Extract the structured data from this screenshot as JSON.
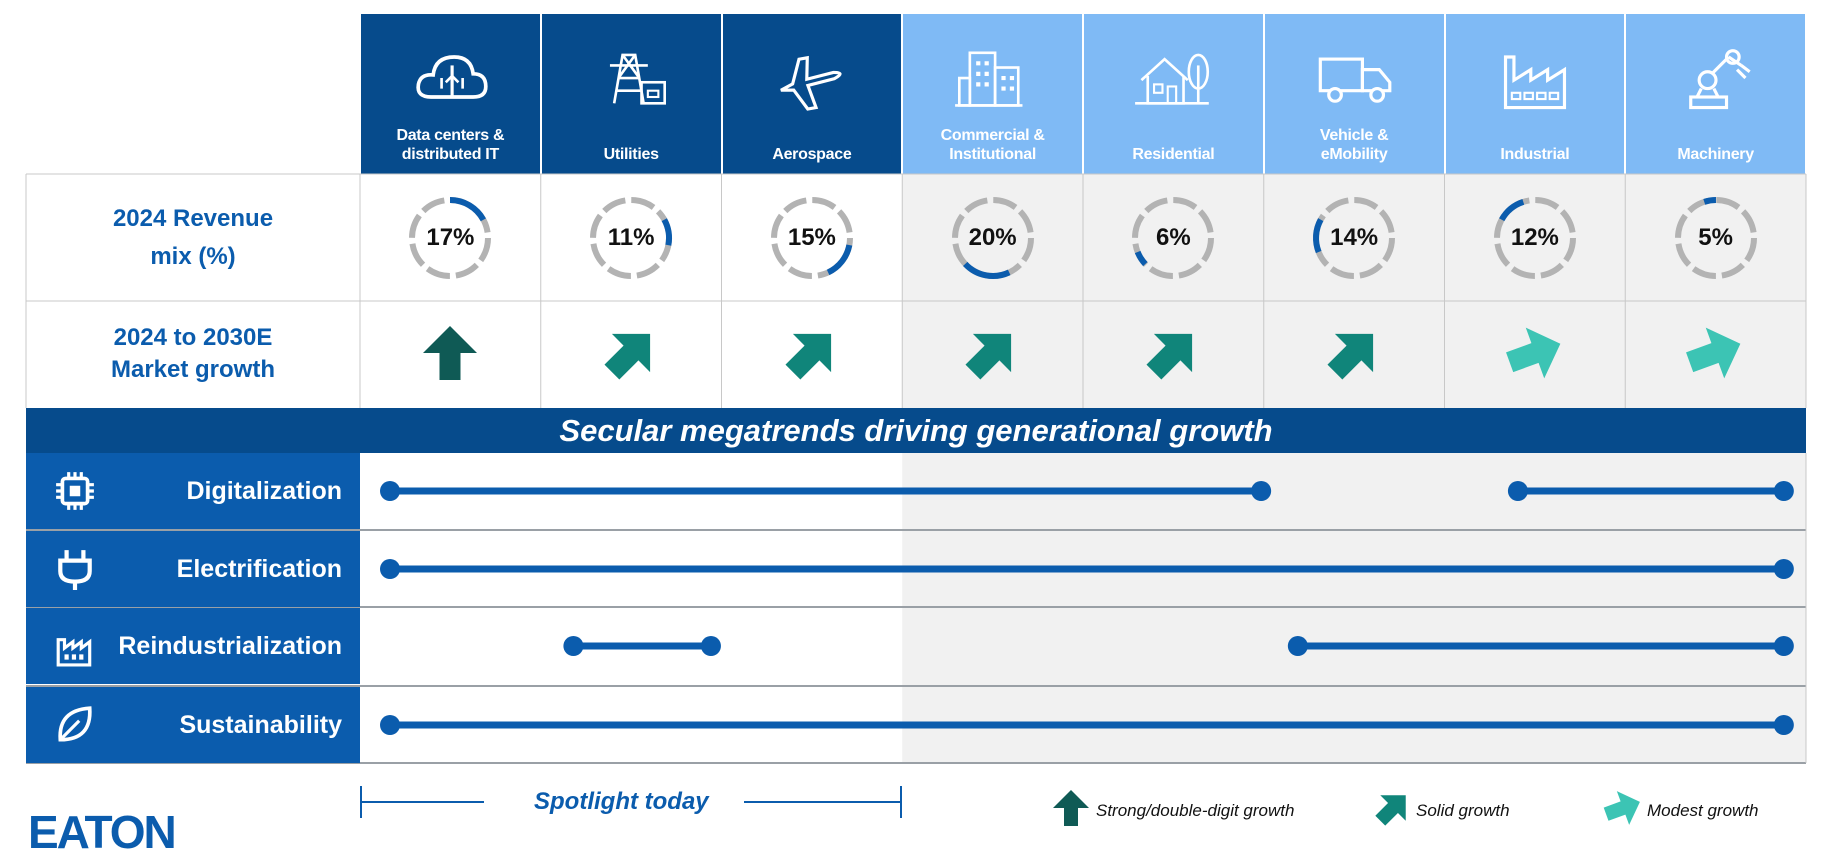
{
  "colors": {
    "dark_blue": "#064b8c",
    "light_blue": "#7fbaf5",
    "accent_blue": "#0b5cad",
    "arrow_strong": "#0f5a55",
    "arrow_solid": "#10857a",
    "arrow_modest": "#3cc4b4",
    "spotlight_bg": "#ffffff",
    "other_bg": "#f1f1f1"
  },
  "segments": [
    {
      "label": "Data centers &\ndistributed IT",
      "icon": "cloud-data-icon",
      "revenue_pct": 17,
      "growth": "strong"
    },
    {
      "label": "Utilities",
      "icon": "power-tower-icon",
      "revenue_pct": 11,
      "growth": "solid"
    },
    {
      "label": "Aerospace",
      "icon": "airplane-icon",
      "revenue_pct": 15,
      "growth": "solid"
    },
    {
      "label": "Commercial &\nInstitutional",
      "icon": "office-buildings-icon",
      "revenue_pct": 20,
      "growth": "solid"
    },
    {
      "label": "Residential",
      "icon": "house-tree-icon",
      "revenue_pct": 6,
      "growth": "solid"
    },
    {
      "label": "Vehicle &\neMobility",
      "icon": "truck-icon",
      "revenue_pct": 14,
      "growth": "solid"
    },
    {
      "label": "Industrial",
      "icon": "factory-icon",
      "revenue_pct": 12,
      "growth": "modest"
    },
    {
      "label": "Machinery",
      "icon": "robot-arm-icon",
      "revenue_pct": 5,
      "growth": "modest"
    }
  ],
  "rows": {
    "revenue_label_1": "2024 Revenue",
    "revenue_label_2": "mix (%)",
    "growth_label_1": "2024 to 2030E",
    "growth_label_2": "Market growth"
  },
  "banner": "Secular megatrends driving generational growth",
  "megatrends": [
    {
      "label": "Digitalization",
      "icon": "chip-icon",
      "ranges": [
        [
          0,
          4.75
        ],
        [
          6.15,
          7.6
        ]
      ]
    },
    {
      "label": "Electrification",
      "icon": "plug-icon",
      "ranges": [
        [
          0,
          7.6
        ]
      ]
    },
    {
      "label": "Reindustrialization",
      "icon": "factory-small-icon",
      "ranges": [
        [
          1,
          1.75
        ],
        [
          4.95,
          7.6
        ]
      ]
    },
    {
      "label": "Sustainability",
      "icon": "leaf-icon",
      "ranges": [
        [
          0,
          7.6
        ]
      ]
    }
  ],
  "spotlight": "Spotlight today",
  "legend": {
    "strong": "Strong/double-digit growth",
    "solid": "Solid growth",
    "modest": "Modest growth"
  },
  "logo": "EATON"
}
